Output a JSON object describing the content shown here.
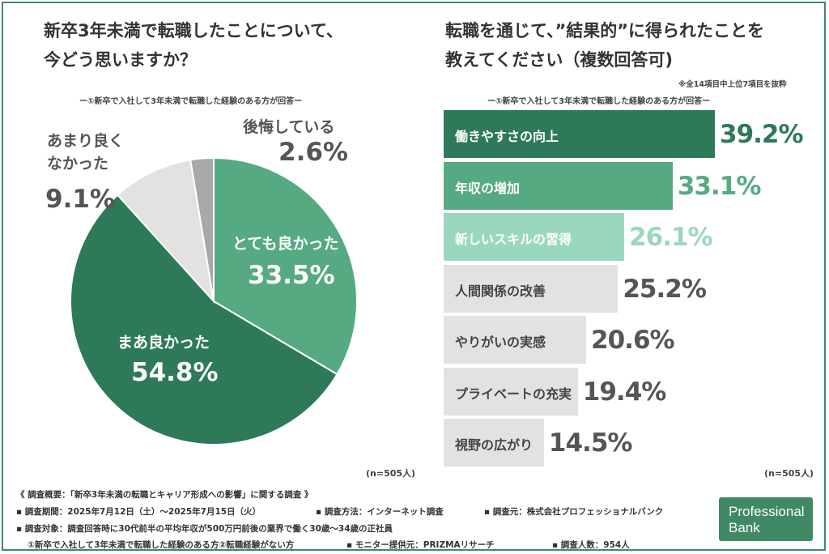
{
  "left_title_line1": "新卒3年未満で転職したことについて、",
  "left_title_line2": "今どう思いますか？",
  "left_subtitle": "ー①新卒で入社して3年未満で転職した経験のある方が回答ー",
  "left_n": "(n=505人)",
  "right_title_line1": "転職を通じて、”結果的”に得られたことを",
  "right_title_line2": "教えてください（複数回答可)",
  "right_note": "※全14項目中上位7項目を抜粋",
  "right_subtitle": "ー①新卒で入社して3年未満で転職した経験のある方が回答ー",
  "right_n": "(n=505人)",
  "pie_labels": {
    "s0_name": "とても良かった",
    "s0_value": "33.5%",
    "s1_name": "まあ良かった",
    "s1_value": "54.8%",
    "s2_name_line1": "あまり良く",
    "s2_name_line2": "なかった",
    "s2_value": "9.1%",
    "s3_name": "後悔している",
    "s3_value": "2.6%"
  },
  "bar_labels": [
    "働きやすさの向上",
    "年収の増加",
    "新しいスキルの習得",
    "人間関係の改善",
    "やりがいの実感",
    "プライベートの充実",
    "視野の広がり"
  ],
  "bar_value_labels": [
    "39.2%",
    "33.1%",
    "26.1%",
    "25.2%",
    "20.6%",
    "19.4%",
    "14.5%"
  ],
  "footer": {
    "line1": "《 調査概要：「新卒3年未満の転職とキャリア形成への影響」に関する調査 》",
    "period": "▪ 調査期間：2025年7月12日（土）～2025年7月15日（火）",
    "method": "▪ 調査方法：インターネット調査",
    "source": "▪ 調査元：株式会社プロフェッショナルバンク",
    "target": "▪ 調査対象：調査回答時に30代前半の平均年収が500万円前後の業界で働く30歳～34歳の正社員",
    "groups": "①新卒で入社して3年未満で転職した経験のある方②転職経験がない方",
    "monitor": "▪ モニター提供元：PRIZMAリサーチ",
    "count": "▪ 調査人数：954人"
  },
  "logo": {
    "line1": "Professional",
    "line2": "Bank"
  },
  "colors": {
    "dark_green": "#2e7a58",
    "mid_green": "#55aa82",
    "light_green": "#9ad8bd",
    "light_gray": "#e2e2e2",
    "mid_gray": "#a8a8a8",
    "gray_text": "#555555"
  },
  "chart_data": [
    {
      "type": "pie",
      "title": "新卒3年未満で転職したことについて、今どう思いますか？",
      "categories": [
        "とても良かった",
        "まあ良かった",
        "あまり良くなかった",
        "後悔している"
      ],
      "values": [
        33.5,
        54.8,
        9.1,
        2.6
      ],
      "colors": [
        "#55aa82",
        "#2e7a58",
        "#e2e2e2",
        "#a8a8a8"
      ]
    },
    {
      "type": "bar",
      "orientation": "horizontal",
      "title": "転職を通じて、”結果的”に得られたことを教えてください（複数回答可)",
      "categories": [
        "働きやすさの向上",
        "年収の増加",
        "新しいスキルの習得",
        "人間関係の改善",
        "やりがいの実感",
        "プライベートの充実",
        "視野の広がり"
      ],
      "values": [
        39.2,
        33.1,
        26.1,
        25.2,
        20.6,
        19.4,
        14.5
      ],
      "unit": "%"
    }
  ]
}
